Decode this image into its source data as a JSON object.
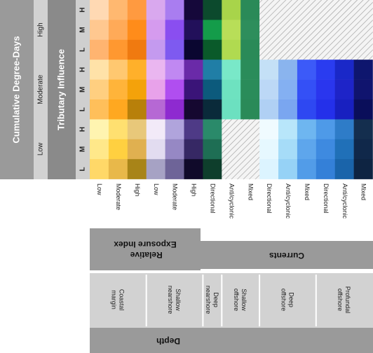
{
  "title": "Cumulative Degree-Days",
  "tributary_title": "Tributary Influence",
  "cdd_levels": [
    "Low",
    "Moderate",
    "High"
  ],
  "trib_levels": [
    "L",
    "M",
    "H"
  ],
  "exposure_header": "Relative Exposure Index",
  "exposure_header_lines": [
    "Relative",
    "Exposure Index"
  ],
  "currents_header": "Currents",
  "depth_header": "Depth",
  "depth_groups": [
    {
      "name": "Coastal margin",
      "lines": [
        "Coastal",
        "margin"
      ],
      "cols": [
        0,
        1,
        2
      ]
    },
    {
      "name": "Shallow nearshore",
      "lines": [
        "Shallow",
        "nearshore"
      ],
      "cols": [
        3,
        4,
        5
      ]
    },
    {
      "name": "Deep nearshore",
      "lines": [
        "Deep",
        "nearshore"
      ],
      "cols": [
        6
      ]
    },
    {
      "name": "Shallow offshore",
      "lines": [
        "Shallow",
        "offshore"
      ],
      "cols": [
        7,
        8
      ]
    },
    {
      "name": "Deep offshore",
      "lines": [
        "Deep",
        "offshore"
      ],
      "cols": [
        9,
        10,
        11
      ]
    },
    {
      "name": "Profundal offshore",
      "lines": [
        "Profundal",
        "offshore"
      ],
      "cols": [
        12,
        13,
        14
      ]
    }
  ],
  "columns": [
    {
      "label": "Low"
    },
    {
      "label": "Moderate"
    },
    {
      "label": "High"
    },
    {
      "label": "Low"
    },
    {
      "label": "Moderate"
    },
    {
      "label": "High"
    },
    {
      "label": "Directional"
    },
    {
      "label": "Anti/cyclonic"
    },
    {
      "label": "Mixed"
    },
    {
      "label": "Directional"
    },
    {
      "label": "Anti/cyclonic"
    },
    {
      "label": "Mixed"
    },
    {
      "label": "Directional"
    },
    {
      "label": "Anti/cyclonic"
    },
    {
      "label": "Mixed"
    }
  ],
  "cells": [
    [
      "#ffd9b3",
      "#ffb870",
      "#ff9a40",
      "#d9a8ee",
      "#a97df0",
      "#15083a",
      "#0c4a2d",
      "#a8d44a",
      "#2a8a58",
      "hatch",
      "hatch",
      "hatch",
      "hatch",
      "hatch",
      "hatch"
    ],
    [
      "#ffc890",
      "#ffaa58",
      "#ff8c1a",
      "#d59bee",
      "#8a4ef0",
      "#22105a",
      "#149c4a",
      "#b8de58",
      "#2e8e5c",
      "hatch",
      "hatch",
      "hatch",
      "hatch",
      "hatch",
      "hatch"
    ],
    [
      "#ffb470",
      "#ff9830",
      "#f07a10",
      "#c49aef",
      "#7e5af0",
      "#0a0630",
      "#0a5a2a",
      "#b0da50",
      "#2a8a58",
      "hatch",
      "hatch",
      "hatch",
      "hatch",
      "hatch",
      "hatch"
    ],
    [
      "#ffe2a8",
      "#ffc870",
      "#ffb02a",
      "#eab6f0",
      "#c088f2",
      "#6a2aa8",
      "#207ea6",
      "#79e8c8",
      "#2a8c5a",
      "#c4e0f6",
      "#8ab4ee",
      "#3c5af8",
      "#2a3cf0",
      "#1a28c8",
      "#0e166e"
    ],
    [
      "#ffcf80",
      "#ffb43a",
      "#f4a20a",
      "#e8a2ea",
      "#b04ef0",
      "#3a1478",
      "#0c5a7c",
      "#6ee2c0",
      "#2a8c5a",
      "#bcd8f6",
      "#84b0f2",
      "#3450f6",
      "#2a36ee",
      "#1e24c8",
      "#10146e"
    ],
    [
      "#ffbf5a",
      "#ffa820",
      "#b8800a",
      "#b668d4",
      "#8e2ad0",
      "#150830",
      "#0a2a3a",
      "#6ce0c0",
      "#2a8a58",
      "#b0d0f4",
      "#7aa6f0",
      "#2e48f2",
      "#2430ea",
      "#1820c0",
      "#0a0e5a"
    ],
    [
      "#fff4b0",
      "#ffe070",
      "#e8c87a",
      "#f2eaf8",
      "#b0a4dc",
      "#4e3a86",
      "#2a8a6a",
      "hatch",
      "hatch",
      "#f0fbff",
      "#b8e6fa",
      "#6eb6f0",
      "#4e9ae8",
      "#2e7cc8",
      "#142e4e"
    ],
    [
      "#ffe88a",
      "#ffd040",
      "#e0b050",
      "#e2dcf0",
      "#9688c4",
      "#362864",
      "#1e6e54",
      "hatch",
      "hatch",
      "#e6f8ff",
      "#a6dcf8",
      "#5ea6ec",
      "#3e8ae0",
      "#2070b8",
      "#10284a"
    ],
    [
      "#ffd868",
      "#e8b84a",
      "#a88418",
      "#a6a2c4",
      "#6e6498",
      "#100a2a",
      "#0e3e2c",
      "hatch",
      "hatch",
      "#dcf4ff",
      "#96d2f6",
      "#529ce8",
      "#3480d8",
      "#1a64aa",
      "#0e2442"
    ]
  ]
}
